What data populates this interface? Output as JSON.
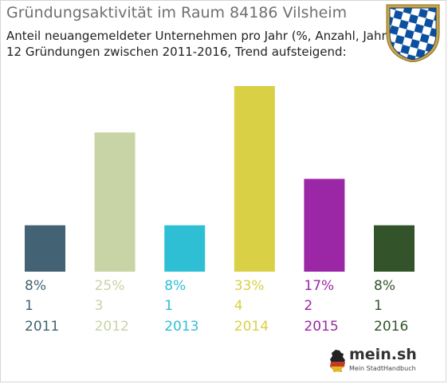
{
  "header": {
    "title": "Gründungsaktivität im Raum 84186 Vilsheim",
    "subtitle_line1": "Anteil neuangemeldeter Unternehmen pro Jahr (%, Anzahl, Jahr)",
    "subtitle_line2": "12 Gründungen zwischen 2011-2016, Trend aufsteigend:"
  },
  "crest": {
    "icon": "bavarian-coat-of-arms-icon",
    "colors": [
      "#0a4fa0",
      "#ffffff",
      "#c8a64a"
    ]
  },
  "chart_data": {
    "type": "bar",
    "categories": [
      "2011",
      "2012",
      "2013",
      "2014",
      "2015",
      "2016"
    ],
    "values": [
      1,
      3,
      1,
      4,
      2,
      1
    ],
    "percent_labels": [
      "8%",
      "25%",
      "8%",
      "33%",
      "17%",
      "8%"
    ],
    "count_labels": [
      "1",
      "3",
      "1",
      "4",
      "2",
      "1"
    ],
    "colors": [
      "#436273",
      "#c8d4a5",
      "#2fbfd5",
      "#d9d045",
      "#9b27a6",
      "#33542a"
    ],
    "ylim": [
      0,
      4
    ],
    "grid": false,
    "legend": "none"
  },
  "logo": {
    "icon": "germany-map-icon",
    "name": "mein.sh",
    "tagline": "Mein StadtHandbuch"
  }
}
